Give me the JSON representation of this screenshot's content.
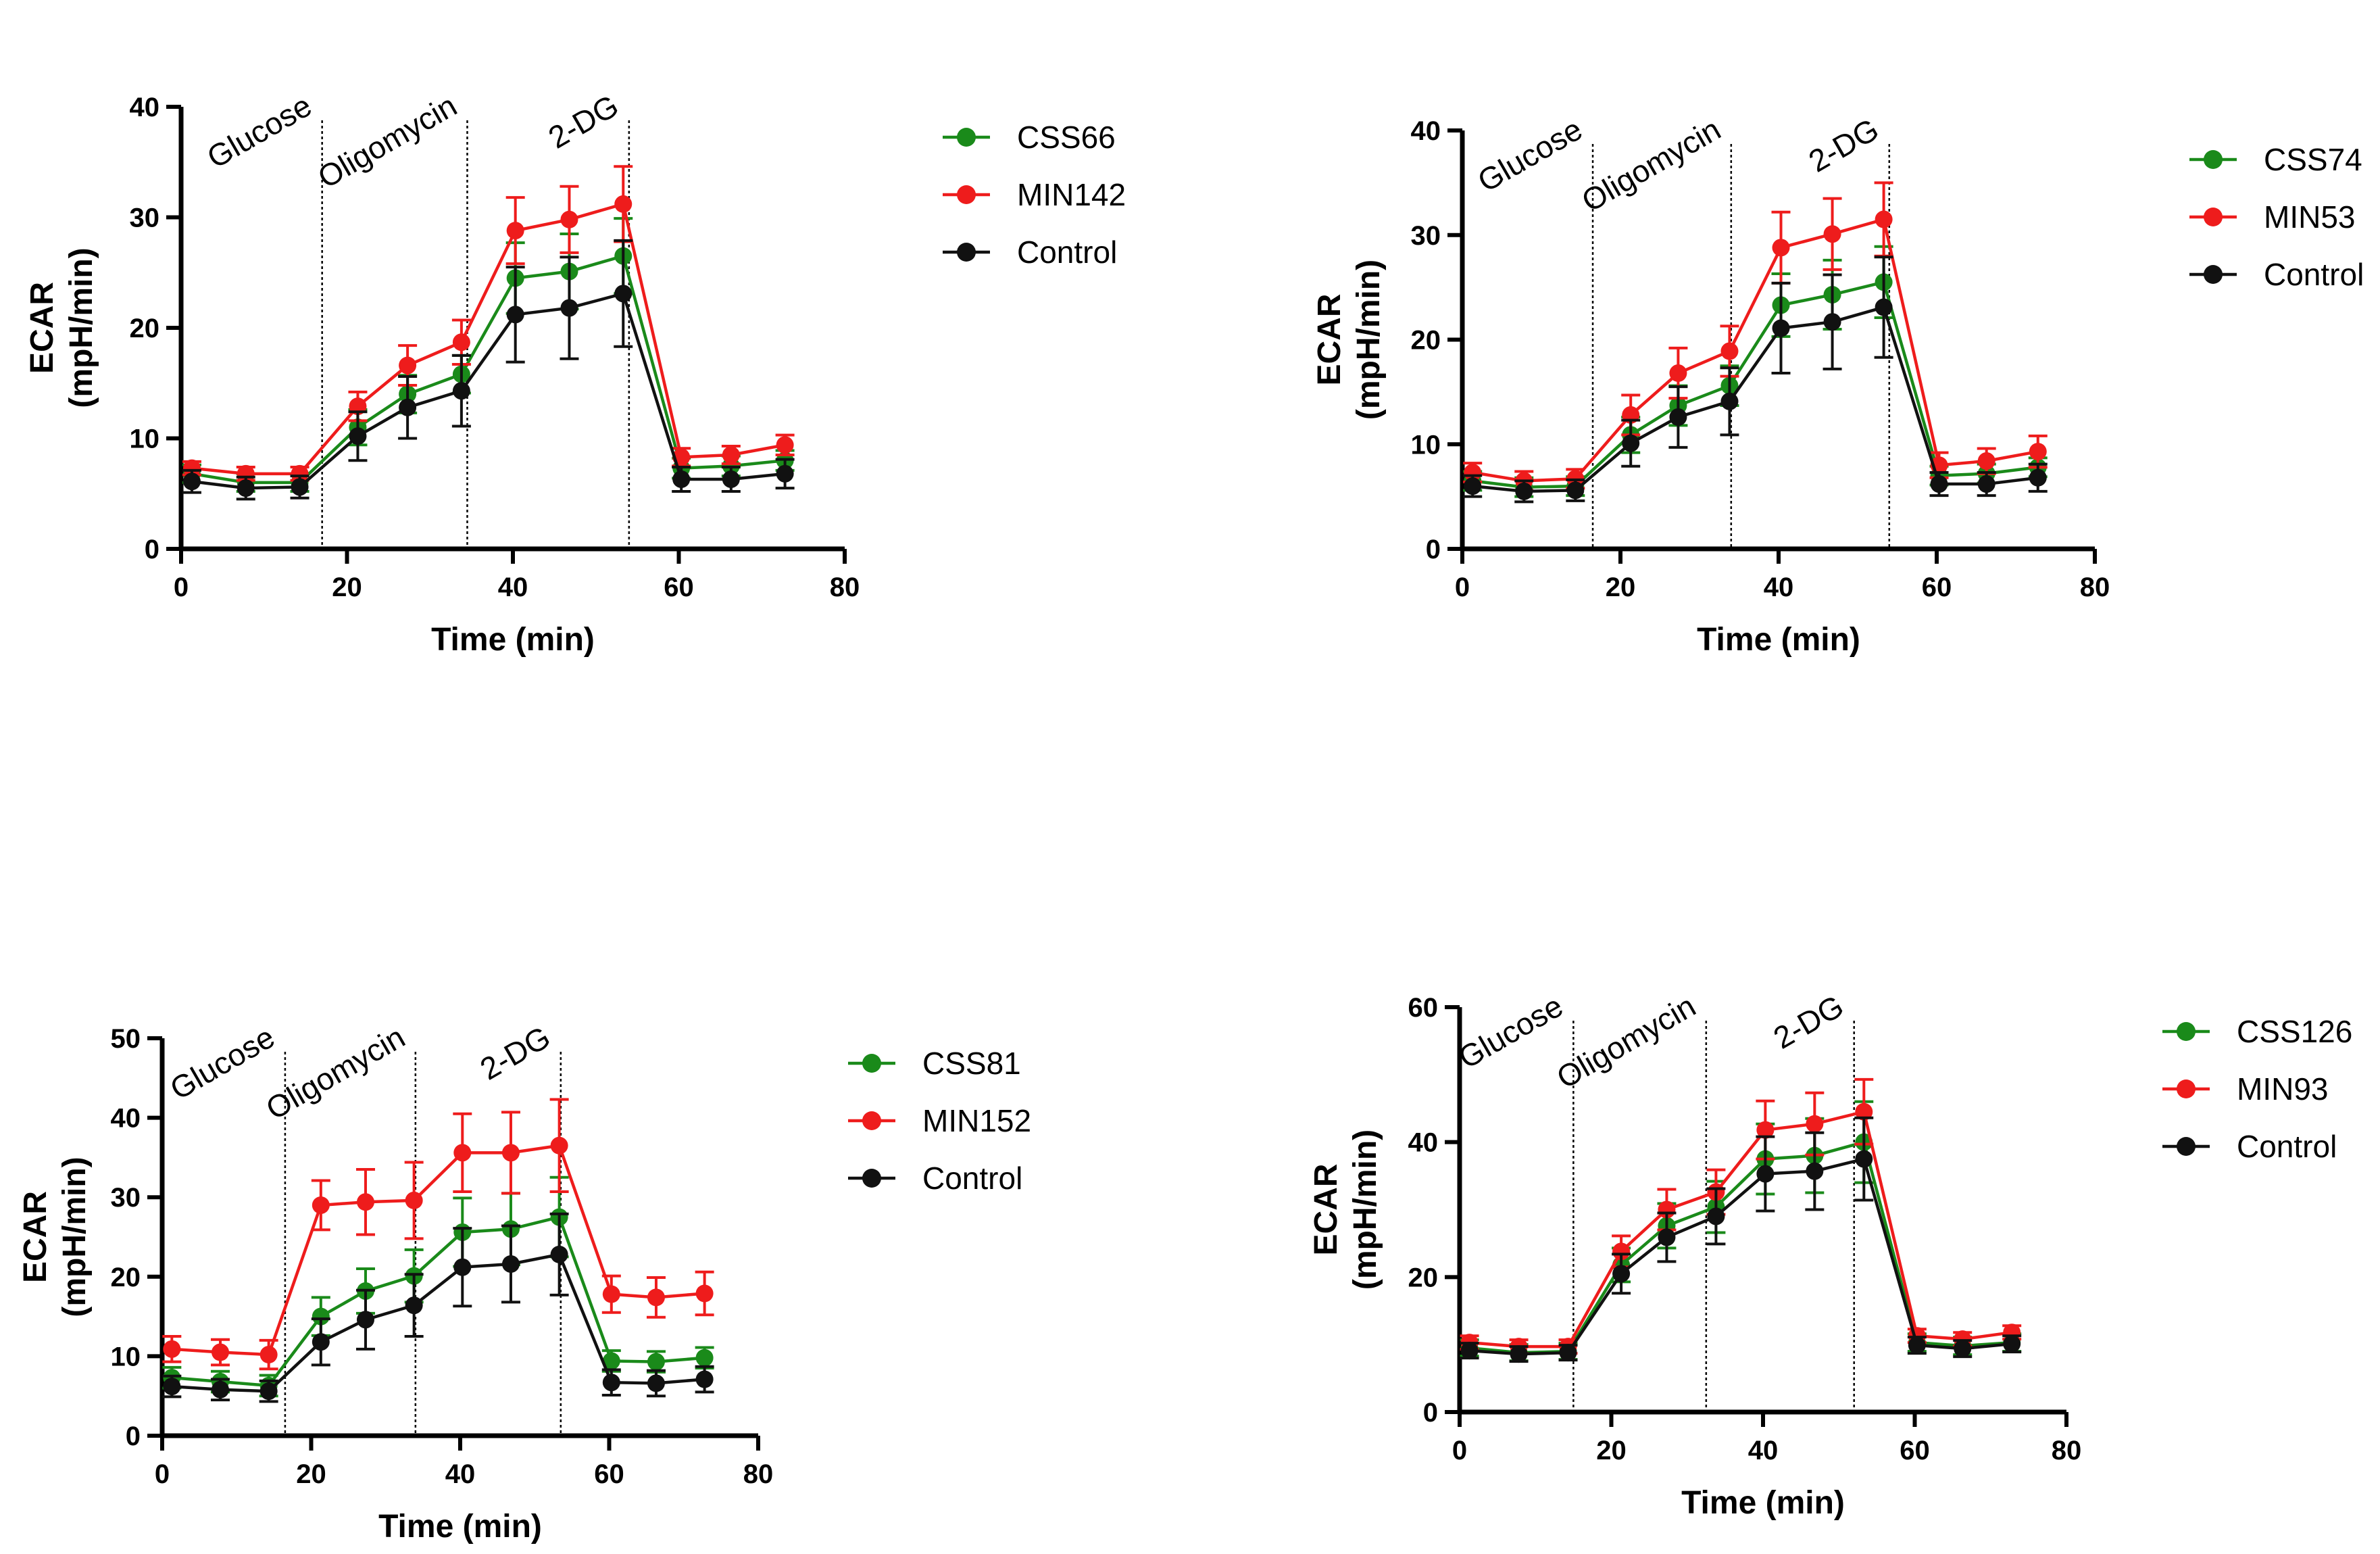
{
  "chart_data": [
    {
      "type": "line",
      "xlabel": "Time (min)",
      "ylabel_lines": [
        "ECAR",
        "(mpH/min)"
      ],
      "xlim": [
        0,
        80
      ],
      "ylim": [
        0,
        40
      ],
      "xticks": [
        0,
        20,
        40,
        60,
        80
      ],
      "yticks": [
        0,
        10,
        20,
        30,
        40
      ],
      "x": [
        1.3,
        7.8,
        14.3,
        21.3,
        27.3,
        33.8,
        40.3,
        46.8,
        53.3,
        60.3,
        66.3,
        72.8
      ],
      "annotations": [
        {
          "label": "Glucose",
          "x": 17
        },
        {
          "label": "Oligomycin",
          "x": 34.5
        },
        {
          "label": "2-DG",
          "x": 54
        }
      ],
      "legend_position": "right",
      "series": [
        {
          "name": "CSS66",
          "color": "#1a8a1a",
          "values": [
            6.8,
            6.0,
            6.0,
            11.0,
            14.0,
            15.8,
            24.5,
            25.1,
            26.5,
            7.3,
            7.5,
            8.0
          ],
          "errors": [
            0.8,
            0.8,
            0.8,
            1.6,
            1.7,
            1.7,
            3.2,
            3.4,
            3.4,
            0.9,
            0.9,
            0.9
          ]
        },
        {
          "name": "MIN142",
          "color": "#ee1c1c",
          "values": [
            7.3,
            6.8,
            6.8,
            12.9,
            16.6,
            18.7,
            28.8,
            29.8,
            31.2,
            8.3,
            8.5,
            9.4
          ],
          "errors": [
            0.6,
            0.6,
            0.6,
            1.3,
            1.8,
            2.0,
            3.0,
            3.0,
            3.4,
            0.8,
            0.8,
            0.9
          ]
        },
        {
          "name": "Control",
          "color": "#111111",
          "values": [
            6.1,
            5.5,
            5.6,
            10.2,
            12.8,
            14.3,
            21.2,
            21.8,
            23.1,
            6.3,
            6.3,
            6.8
          ],
          "errors": [
            1.0,
            1.0,
            1.0,
            2.2,
            2.8,
            3.2,
            4.3,
            4.6,
            4.8,
            1.1,
            1.1,
            1.3
          ]
        }
      ]
    },
    {
      "type": "line",
      "xlabel": "Time (min)",
      "ylabel_lines": [
        "ECAR",
        "(mpH/min)"
      ],
      "xlim": [
        0,
        80
      ],
      "ylim": [
        0,
        40
      ],
      "xticks": [
        0,
        20,
        40,
        60,
        80
      ],
      "yticks": [
        0,
        10,
        20,
        30,
        40
      ],
      "x": [
        1.3,
        7.8,
        14.3,
        21.3,
        27.3,
        33.8,
        40.3,
        46.8,
        53.3,
        60.3,
        66.3,
        72.8
      ],
      "annotations": [
        {
          "label": "Glucose",
          "x": 16.5
        },
        {
          "label": "Oligomycin",
          "x": 34
        },
        {
          "label": "2-DG",
          "x": 54
        }
      ],
      "legend_position": "right",
      "series": [
        {
          "name": "CSS74",
          "color": "#1a8a1a",
          "values": [
            6.5,
            5.9,
            6.0,
            10.9,
            13.7,
            15.6,
            23.3,
            24.3,
            25.5,
            7.0,
            7.2,
            7.8
          ],
          "errors": [
            0.9,
            0.9,
            0.9,
            1.7,
            1.9,
            1.9,
            3.0,
            3.3,
            3.4,
            0.9,
            0.9,
            0.9
          ]
        },
        {
          "name": "MIN53",
          "color": "#ee1c1c",
          "values": [
            7.3,
            6.5,
            6.7,
            12.8,
            16.8,
            18.9,
            28.8,
            30.1,
            31.5,
            8.0,
            8.4,
            9.3
          ],
          "errors": [
            0.9,
            0.9,
            0.9,
            1.9,
            2.4,
            2.4,
            3.4,
            3.4,
            3.5,
            1.2,
            1.2,
            1.5
          ]
        },
        {
          "name": "Control",
          "color": "#111111",
          "values": [
            6.0,
            5.5,
            5.6,
            10.1,
            12.6,
            14.1,
            21.1,
            21.7,
            23.1,
            6.2,
            6.2,
            6.8
          ],
          "errors": [
            1.0,
            1.0,
            1.0,
            2.2,
            2.9,
            3.2,
            4.3,
            4.5,
            4.8,
            1.1,
            1.1,
            1.3
          ]
        }
      ]
    },
    {
      "type": "line",
      "xlabel": "Time (min)",
      "ylabel_lines": [
        "ECAR",
        "(mpH/min)"
      ],
      "xlim": [
        0,
        80
      ],
      "ylim": [
        0,
        50
      ],
      "xticks": [
        0,
        20,
        40,
        60,
        80
      ],
      "yticks": [
        0,
        10,
        20,
        30,
        40,
        50
      ],
      "x": [
        1.3,
        7.8,
        14.3,
        21.3,
        27.3,
        33.8,
        40.3,
        46.8,
        53.3,
        60.3,
        66.3,
        72.8
      ],
      "annotations": [
        {
          "label": "Glucose",
          "x": 16.5
        },
        {
          "label": "Oligomycin",
          "x": 34
        },
        {
          "label": "2-DG",
          "x": 53.5
        }
      ],
      "legend_position": "right",
      "series": [
        {
          "name": "CSS81",
          "color": "#1a8a1a",
          "values": [
            7.3,
            6.8,
            6.3,
            15.0,
            18.2,
            20.1,
            25.6,
            26.0,
            27.5,
            9.4,
            9.3,
            9.8
          ],
          "errors": [
            1.3,
            1.3,
            1.3,
            2.4,
            2.8,
            3.3,
            4.3,
            4.5,
            5.0,
            1.3,
            1.3,
            1.3
          ]
        },
        {
          "name": "MIN152",
          "color": "#ee1c1c",
          "values": [
            10.9,
            10.5,
            10.2,
            29.0,
            29.4,
            29.6,
            35.6,
            35.6,
            36.5,
            17.8,
            17.4,
            17.9
          ],
          "errors": [
            1.6,
            1.6,
            1.8,
            3.1,
            4.1,
            4.8,
            4.9,
            5.1,
            5.8,
            2.3,
            2.5,
            2.7
          ]
        },
        {
          "name": "Control",
          "color": "#111111",
          "values": [
            6.2,
            5.8,
            5.6,
            11.8,
            14.6,
            16.4,
            21.2,
            21.6,
            22.8,
            6.7,
            6.6,
            7.1
          ],
          "errors": [
            1.3,
            1.3,
            1.3,
            2.9,
            3.7,
            3.9,
            4.9,
            4.8,
            5.1,
            1.6,
            1.6,
            1.6
          ]
        }
      ]
    },
    {
      "type": "line",
      "xlabel": "Time (min)",
      "ylabel_lines": [
        "ECAR",
        "(mpH/min)"
      ],
      "xlim": [
        0,
        80
      ],
      "ylim": [
        0,
        60
      ],
      "xticks": [
        0,
        20,
        40,
        60,
        80
      ],
      "yticks": [
        0,
        20,
        40,
        60
      ],
      "x": [
        1.3,
        7.8,
        14.3,
        21.3,
        27.3,
        33.8,
        40.3,
        46.8,
        53.3,
        60.3,
        66.3,
        72.8
      ],
      "annotations": [
        {
          "label": "Glucose",
          "x": 15
        },
        {
          "label": "Oligomycin",
          "x": 32.5
        },
        {
          "label": "2-DG",
          "x": 52
        }
      ],
      "legend_position": "right",
      "series": [
        {
          "name": "CSS126",
          "color": "#1a8a1a",
          "values": [
            9.5,
            8.8,
            9.0,
            21.8,
            27.6,
            30.4,
            37.5,
            38.0,
            40.0,
            10.3,
            9.8,
            10.3
          ],
          "errors": [
            1.2,
            1.2,
            1.2,
            2.5,
            3.3,
            3.8,
            5.2,
            5.5,
            6.0,
            1.3,
            1.3,
            1.3
          ]
        },
        {
          "name": "MIN93",
          "color": "#ee1c1c",
          "values": [
            10.3,
            9.7,
            9.7,
            23.8,
            30.0,
            32.6,
            41.8,
            42.7,
            44.5,
            11.3,
            10.8,
            11.8
          ],
          "errors": [
            1.0,
            1.0,
            1.0,
            2.3,
            3.0,
            3.3,
            4.3,
            4.6,
            4.8,
            1.0,
            1.0,
            1.0
          ]
        },
        {
          "name": "Control",
          "color": "#111111",
          "values": [
            9.1,
            8.6,
            8.8,
            20.5,
            25.9,
            29.0,
            35.3,
            35.7,
            37.5,
            9.9,
            9.4,
            10.1
          ],
          "errors": [
            1.1,
            1.1,
            1.1,
            2.9,
            3.6,
            4.1,
            5.5,
            5.7,
            6.1,
            1.2,
            1.2,
            1.2
          ]
        }
      ]
    }
  ]
}
